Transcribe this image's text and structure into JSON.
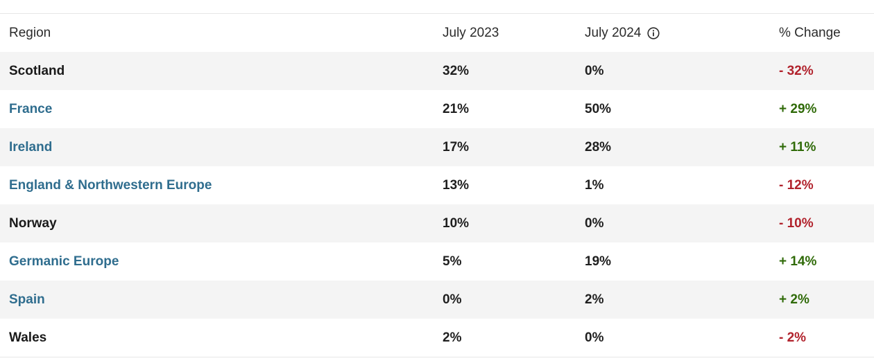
{
  "header": {
    "region": "Region",
    "col_2023": "July 2023",
    "col_2024": "July 2024",
    "change": "% Change",
    "info_icon": "info-circle-icon"
  },
  "rows": [
    {
      "region": "Scotland",
      "is_link": false,
      "v2023": "32%",
      "v2024": "0%",
      "change": "- 32%",
      "direction": "down"
    },
    {
      "region": "France",
      "is_link": true,
      "v2023": "21%",
      "v2024": "50%",
      "change": "+ 29%",
      "direction": "up"
    },
    {
      "region": "Ireland",
      "is_link": true,
      "v2023": "17%",
      "v2024": "28%",
      "change": "+ 11%",
      "direction": "up"
    },
    {
      "region": "England & Northwestern Europe",
      "is_link": true,
      "v2023": "13%",
      "v2024": "1%",
      "change": "- 12%",
      "direction": "down"
    },
    {
      "region": "Norway",
      "is_link": false,
      "v2023": "10%",
      "v2024": "0%",
      "change": "- 10%",
      "direction": "down"
    },
    {
      "region": "Germanic Europe",
      "is_link": true,
      "v2023": "5%",
      "v2024": "19%",
      "change": "+ 14%",
      "direction": "up"
    },
    {
      "region": "Spain",
      "is_link": true,
      "v2023": "0%",
      "v2024": "2%",
      "change": "+ 2%",
      "direction": "up"
    },
    {
      "region": "Wales",
      "is_link": false,
      "v2023": "2%",
      "v2024": "0%",
      "change": "- 2%",
      "direction": "down"
    }
  ],
  "colors": {
    "link": "#2f6d8e",
    "negative": "#b1222c",
    "positive": "#2f6a08",
    "shaded_row": "#f4f4f4"
  }
}
